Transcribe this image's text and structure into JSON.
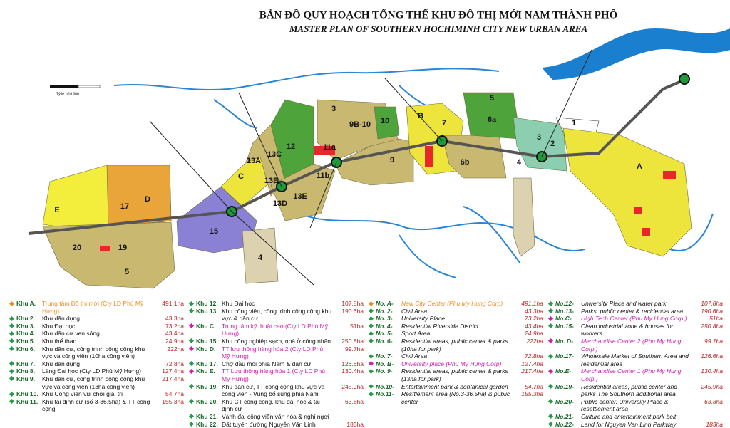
{
  "header": {
    "title": "BẢN ĐỒ QUY HOẠCH TỔNG THỂ KHU ĐÔ THỊ MỚI NAM THÀNH PHỐ",
    "subtitle": "MASTER PLAN OF SOUTHERN HOCHIMINH CITY NEW URBAN AREA"
  },
  "map": {
    "scale_label": "Tỷ lệ 1/10.000",
    "zones": [
      "E",
      "17",
      "D",
      "20",
      "19",
      "5",
      "15",
      "4",
      "C",
      "13A",
      "13B",
      "13C",
      "13D",
      "13E",
      "12",
      "3",
      "9B-10",
      "10",
      "11a",
      "11b",
      "9",
      "B",
      "7",
      "6a",
      "6b",
      "5",
      "3",
      "1",
      "2",
      "4",
      "A"
    ]
  },
  "legend": {
    "columns": [
      [
        {
          "code": "Khu A.",
          "description": "Trung tâm Đô thị mới (Cty LD Phú Mỹ Hưng)",
          "area": "491.1ha",
          "color": "#f28c1e"
        },
        {
          "code": "Khu 2.",
          "description": "Khu dân dụng",
          "area": "43.3ha",
          "color": "#2a9a4a"
        },
        {
          "code": "Khu 3.",
          "description": "Khu Đại học",
          "area": "73.2ha",
          "color": "#2a9a4a"
        },
        {
          "code": "Khu 4.",
          "description": "Khu dân cư ven sông",
          "area": "43.4ha",
          "color": "#2a9a4a"
        },
        {
          "code": "Khu 5.",
          "description": "Khu thể thao",
          "area": "24.9ha",
          "color": "#2a9a4a"
        },
        {
          "code": "Khu 6.",
          "description": "Khu dân cư, công trình công cộng khu vực và công viên (10ha công viên)",
          "area": "222ha",
          "color": "#2a9a4a"
        },
        {
          "code": "Khu 7.",
          "description": "Khu dân dụng",
          "area": "72.8ha",
          "color": "#2a9a4a"
        },
        {
          "code": "Khu 8.",
          "description": "Làng Đại học (Cty LD Phú Mỹ Hưng)",
          "area": "127.4ha",
          "color": "#2a9a4a"
        },
        {
          "code": "Khu 9.",
          "description": "Khu dân cư, công trình công cộng khu vực và công viên (13ha công viên)",
          "area": "217.4ha",
          "color": "#2a9a4a"
        },
        {
          "code": "Khu 10.",
          "description": "Khu Công viên vui chơi giải trí",
          "area": "54.7ha",
          "color": "#2a9a4a"
        },
        {
          "code": "Khu 11.",
          "description": "Khu tái định cư (số 3-36.5ha) & TT công cộng",
          "area": "155.3ha",
          "color": "#2a9a4a"
        }
      ],
      [
        {
          "code": "Khu 12.",
          "description": "Khu Đại học",
          "area": "107.8ha",
          "color": "#2a9a4a"
        },
        {
          "code": "Khu 13.",
          "description": "Khu công viên, công trình công cộng khu vực & dân cư",
          "area": "190.6ha",
          "color": "#2a9a4a"
        },
        {
          "code": "Khu C.",
          "description": "Trung tâm kỹ thuật cao (Cty LD Phú Mỹ Hưng)",
          "area": "51ha",
          "color": "#d020b0"
        },
        {
          "code": "Khu 15.",
          "description": "Khu công nghiệp sạch, nhà ở công nhân",
          "area": "250.8ha",
          "color": "#2a9a4a"
        },
        {
          "code": "Khu D.",
          "description": "TT lưu thông hàng hóa 2 (Cty LD Phú Mỹ Hưng)",
          "area": "99.7ha",
          "color": "#d020b0"
        },
        {
          "code": "Khu 17.",
          "description": "Chợ đầu mối phía Nam & dân cư",
          "area": "126.6ha",
          "color": "#2a9a4a"
        },
        {
          "code": "Khu E.",
          "description": "TT Lưu thông hàng hóa 1 (Cty LD Phú Mỹ Hưng)",
          "area": "130.4ha",
          "color": "#d020b0"
        },
        {
          "code": "Khu 19.",
          "description": "Khu dân cư, TT công cộng khu vực và công viên - Vùng bổ sung phía Nam",
          "area": "245.9ha",
          "color": "#2a9a4a"
        },
        {
          "code": "Khu 20.",
          "description": "Khu CT công cộng, khu đại học & tái định cư",
          "area": "63.8ha",
          "color": "#2a9a4a"
        },
        {
          "code": "Khu 21.",
          "description": "Vành đai công viên văn hóa & nghỉ ngơi",
          "color": "#2a9a4a"
        },
        {
          "code": "Khu 22.",
          "description": "Đất tuyến đường Nguyễn Văn Linh",
          "area": "183ha",
          "color": "#2a9a4a"
        }
      ],
      [
        {
          "code": "No. A-",
          "description": "New City Center (Phu My Hung Corp)",
          "area": "491.1ha",
          "color": "#f28c1e"
        },
        {
          "code": "No. 2-",
          "description": "Civil Area",
          "area": "43.3ha",
          "color": "#2a9a4a"
        },
        {
          "code": "No. 3-",
          "description": "University Place",
          "area": "73.2ha",
          "color": "#2a9a4a"
        },
        {
          "code": "No. 4-",
          "description": "Residential Riverside District",
          "area": "43.4ha",
          "color": "#2a9a4a"
        },
        {
          "code": "No. 5-",
          "description": "Sport Area",
          "area": "24.9ha",
          "color": "#2a9a4a"
        },
        {
          "code": "No. 6-",
          "description": "Residential areas, public center & parks (10ha for park)",
          "area": "222ha",
          "color": "#2a9a4a"
        },
        {
          "code": "No. 7-",
          "description": "Civil Area",
          "area": "72.8ha",
          "color": "#2a9a4a"
        },
        {
          "code": "No. B-",
          "description": "University place (Phu My Hung Corp)",
          "area": "127.4ha",
          "color": "#d020b0"
        },
        {
          "code": "No. 9-",
          "description": "Residential areas, public center & parks (13ha for park)",
          "area": "217.4ha",
          "color": "#2a9a4a"
        },
        {
          "code": "No.10-",
          "description": "Entertainment park & bontanical garden",
          "area": "54.7ha",
          "color": "#2a9a4a"
        },
        {
          "code": "No.11-",
          "description": "Resttlement area (No.3-36.5ha) & public center",
          "area": "155.3ha",
          "color": "#2a9a4a"
        }
      ],
      [
        {
          "code": "No.12-",
          "description": "University Place and water park",
          "area": "107.8ha",
          "color": "#2a9a4a"
        },
        {
          "code": "No.13-",
          "description": "Parks, public center & recidential area",
          "area": "190.6ha",
          "color": "#2a9a4a"
        },
        {
          "code": "No.C-",
          "description": "High Tech Center (Phu My Hung Corp.)",
          "area": "51ha",
          "color": "#d020b0"
        },
        {
          "code": "No.15-",
          "description": "Clean industrial zone & houses for workers",
          "area": "250.8ha",
          "color": "#2a9a4a"
        },
        {
          "code": "No. D-",
          "description": "Merchandise Center 2 (Phu My Hung Corp.)",
          "area": "99.7ha",
          "color": "#d020b0"
        },
        {
          "code": "No.17-",
          "description": "Wholesale Market of Southern Area and residential area",
          "area": "126.6ha",
          "color": "#2a9a4a"
        },
        {
          "code": "No.E-",
          "description": "Merchandise Center 1 (Phu My Hung Corp.)",
          "area": "130.4ha",
          "color": "#d020b0"
        },
        {
          "code": "No.19-",
          "description": "Residential areas, public center and parks The Southern additional area",
          "area": "245.9ha",
          "color": "#2a9a4a"
        },
        {
          "code": "No.20-",
          "description": "Public center, University Place & resettlement area",
          "area": "63.8ha",
          "color": "#2a9a4a"
        },
        {
          "code": "No.21-",
          "description": "Culture and entertainment park belt",
          "color": "#2a9a4a"
        },
        {
          "code": "No.22-",
          "description": "Land for Nguyen Van Linh Parkway",
          "area": "183ha",
          "color": "#2a9a4a"
        }
      ]
    ]
  }
}
